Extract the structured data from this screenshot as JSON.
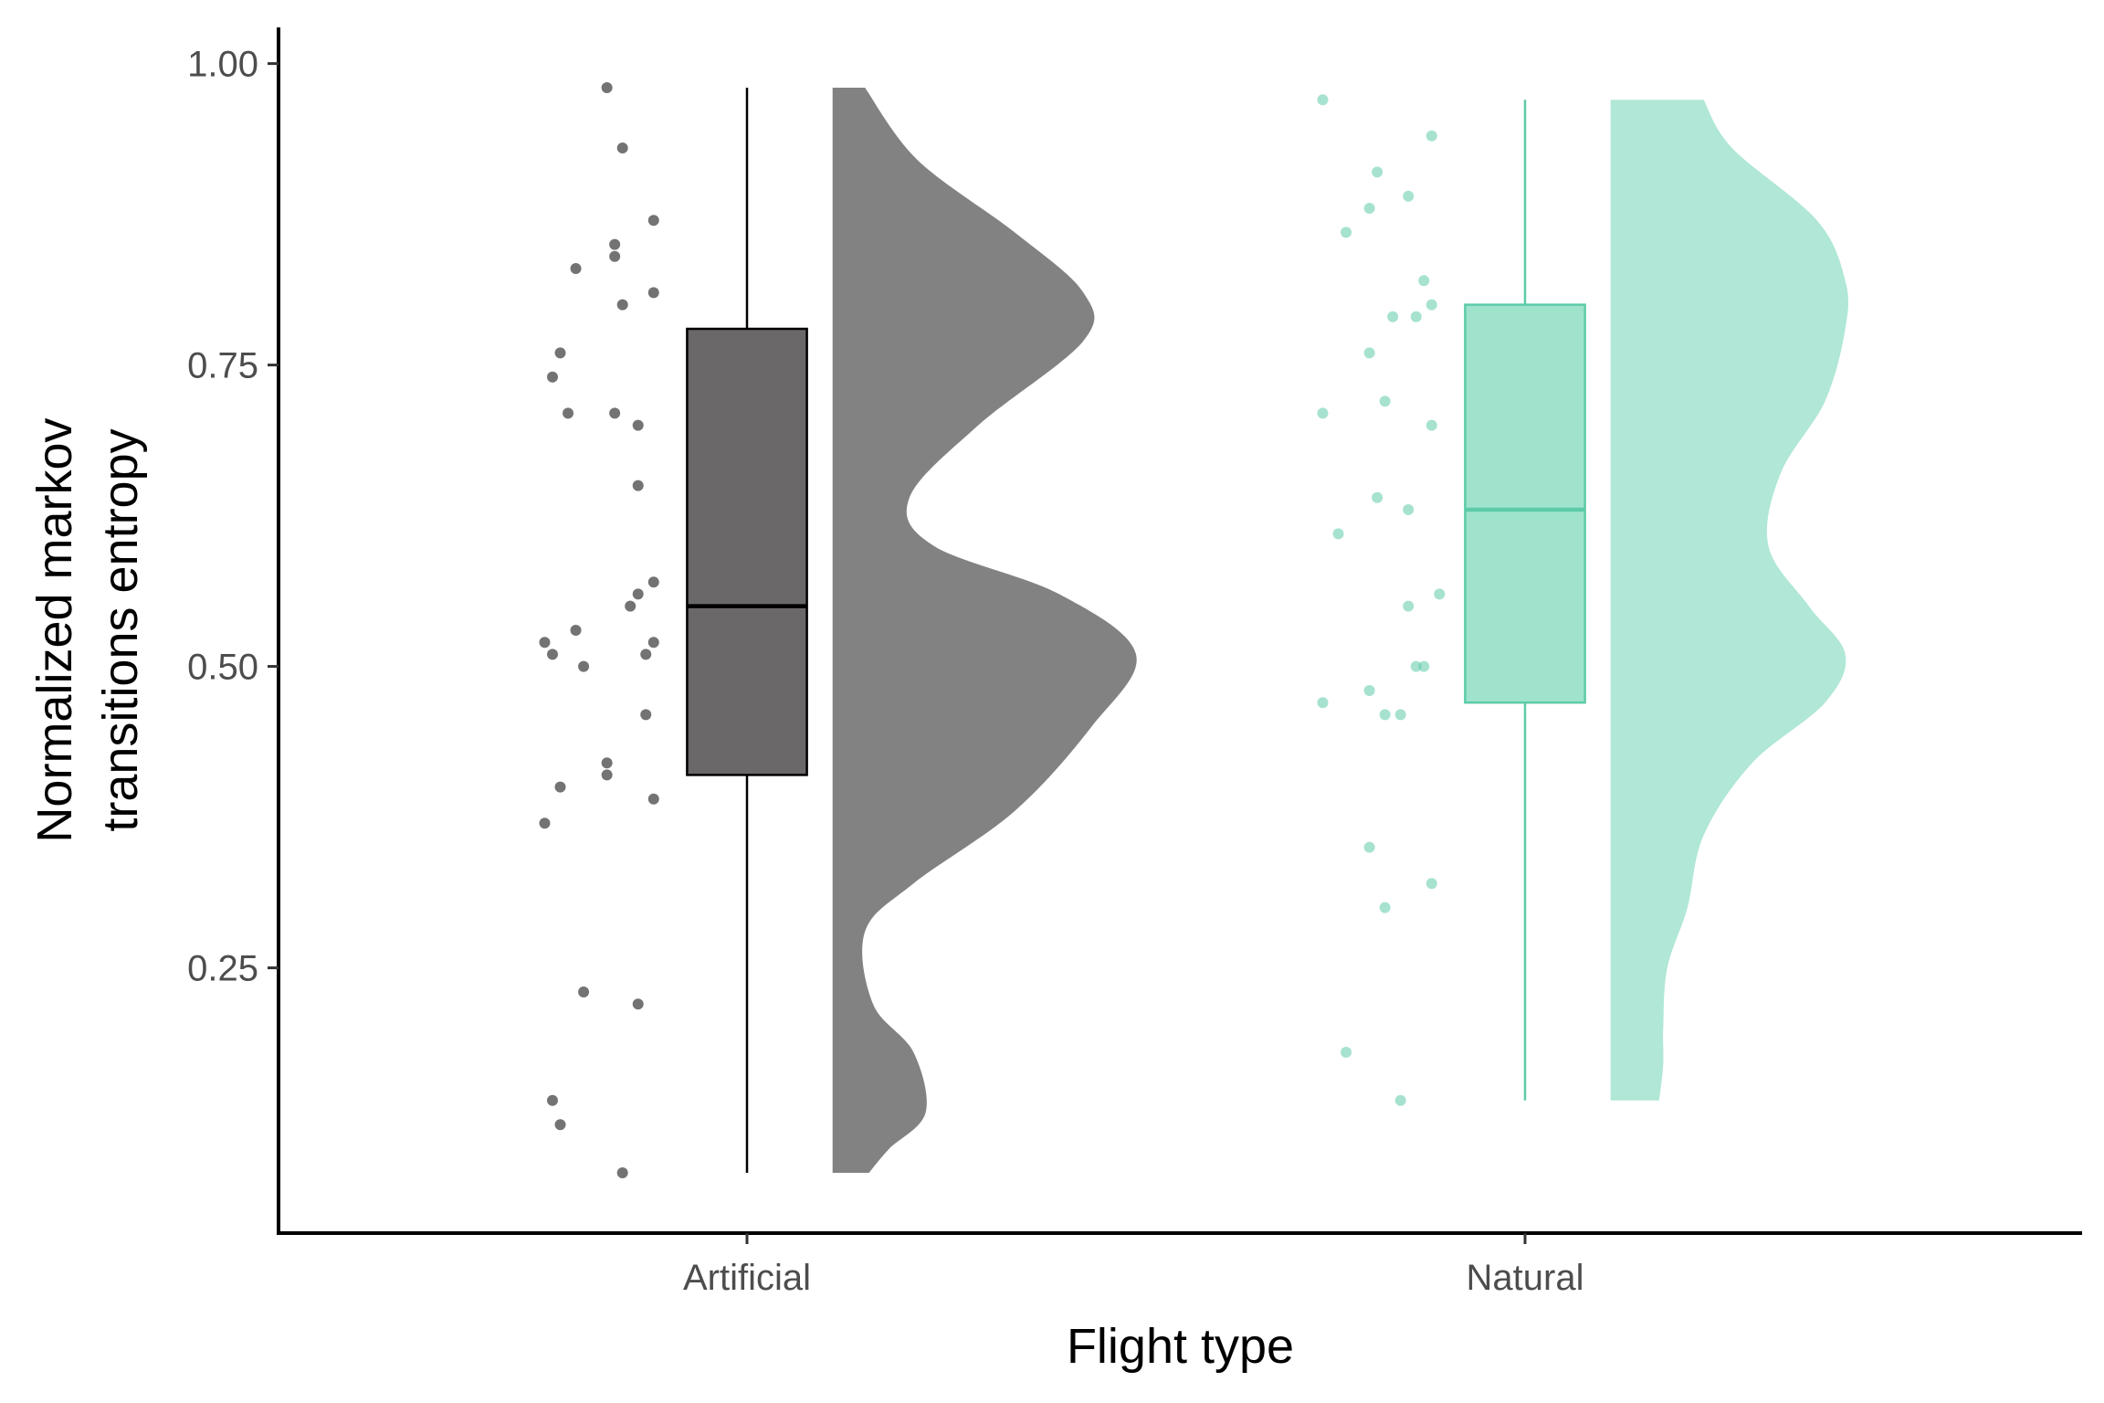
{
  "chart_data": {
    "type": "raincloud",
    "title": "",
    "xlabel": "Flight type",
    "ylabel_lines": [
      "Normalized markov",
      "transitions entropy"
    ],
    "ylim": [
      0.03,
      1.03
    ],
    "yticks": [
      0.25,
      0.5,
      0.75,
      1.0
    ],
    "ytick_labels": [
      "0.25",
      "0.50",
      "0.75",
      "1.00"
    ],
    "categories": [
      "Artificial",
      "Natural"
    ],
    "grid": false,
    "legend": "none",
    "groups": [
      {
        "category": "Artificial",
        "box_fill": "#6b6869",
        "box_stroke": "#000000",
        "cloud_fill": "#828282",
        "point_color": "#000000",
        "box": {
          "min": 0.08,
          "q1": 0.41,
          "median": 0.55,
          "q3": 0.78,
          "max": 0.98
        },
        "density": [
          [
            0.08,
            0.09
          ],
          [
            0.1,
            0.14
          ],
          [
            0.13,
            0.23
          ],
          [
            0.18,
            0.2
          ],
          [
            0.22,
            0.1
          ],
          [
            0.28,
            0.08
          ],
          [
            0.32,
            0.2
          ],
          [
            0.38,
            0.45
          ],
          [
            0.45,
            0.64
          ],
          [
            0.51,
            0.75
          ],
          [
            0.56,
            0.56
          ],
          [
            0.6,
            0.25
          ],
          [
            0.64,
            0.19
          ],
          [
            0.7,
            0.36
          ],
          [
            0.77,
            0.62
          ],
          [
            0.81,
            0.62
          ],
          [
            0.86,
            0.45
          ],
          [
            0.92,
            0.21
          ],
          [
            0.98,
            0.08
          ]
        ],
        "points": [
          [
            -0.18,
            0.98
          ],
          [
            -0.16,
            0.93
          ],
          [
            -0.12,
            0.87
          ],
          [
            -0.17,
            0.85
          ],
          [
            -0.17,
            0.84
          ],
          [
            -0.22,
            0.83
          ],
          [
            -0.12,
            0.81
          ],
          [
            -0.16,
            0.8
          ],
          [
            -0.24,
            0.76
          ],
          [
            -0.25,
            0.74
          ],
          [
            -0.23,
            0.71
          ],
          [
            -0.17,
            0.71
          ],
          [
            -0.14,
            0.7
          ],
          [
            -0.14,
            0.65
          ],
          [
            -0.12,
            0.57
          ],
          [
            -0.14,
            0.56
          ],
          [
            -0.15,
            0.55
          ],
          [
            -0.22,
            0.53
          ],
          [
            -0.26,
            0.52
          ],
          [
            -0.12,
            0.52
          ],
          [
            -0.25,
            0.51
          ],
          [
            -0.13,
            0.51
          ],
          [
            -0.21,
            0.5
          ],
          [
            -0.13,
            0.46
          ],
          [
            -0.18,
            0.42
          ],
          [
            -0.18,
            0.41
          ],
          [
            -0.24,
            0.4
          ],
          [
            -0.12,
            0.39
          ],
          [
            -0.26,
            0.37
          ],
          [
            -0.21,
            0.23
          ],
          [
            -0.14,
            0.22
          ],
          [
            -0.25,
            0.14
          ],
          [
            -0.24,
            0.12
          ],
          [
            -0.16,
            0.08
          ]
        ]
      },
      {
        "category": "Natural",
        "box_fill": "#9fe3cd",
        "box_stroke": "#5ccba8",
        "cloud_fill": "#b0e7d6",
        "point_color": "#5ccba8",
        "box": {
          "min": 0.14,
          "q1": 0.47,
          "median": 0.63,
          "q3": 0.8,
          "max": 0.97
        },
        "density": [
          [
            0.14,
            0.12
          ],
          [
            0.17,
            0.13
          ],
          [
            0.2,
            0.13
          ],
          [
            0.25,
            0.14
          ],
          [
            0.3,
            0.19
          ],
          [
            0.36,
            0.23
          ],
          [
            0.42,
            0.35
          ],
          [
            0.47,
            0.53
          ],
          [
            0.51,
            0.58
          ],
          [
            0.55,
            0.49
          ],
          [
            0.6,
            0.39
          ],
          [
            0.66,
            0.42
          ],
          [
            0.72,
            0.53
          ],
          [
            0.78,
            0.58
          ],
          [
            0.82,
            0.58
          ],
          [
            0.87,
            0.51
          ],
          [
            0.93,
            0.3
          ],
          [
            0.97,
            0.23
          ]
        ],
        "points": [
          [
            -0.26,
            0.97
          ],
          [
            -0.12,
            0.94
          ],
          [
            -0.19,
            0.91
          ],
          [
            -0.15,
            0.89
          ],
          [
            -0.2,
            0.88
          ],
          [
            -0.23,
            0.86
          ],
          [
            -0.13,
            0.82
          ],
          [
            -0.12,
            0.8
          ],
          [
            -0.17,
            0.79
          ],
          [
            -0.14,
            0.79
          ],
          [
            -0.2,
            0.76
          ],
          [
            -0.18,
            0.72
          ],
          [
            -0.26,
            0.71
          ],
          [
            -0.12,
            0.7
          ],
          [
            -0.19,
            0.64
          ],
          [
            -0.15,
            0.63
          ],
          [
            -0.24,
            0.61
          ],
          [
            -0.11,
            0.56
          ],
          [
            -0.15,
            0.55
          ],
          [
            -0.13,
            0.5
          ],
          [
            -0.14,
            0.5
          ],
          [
            -0.2,
            0.48
          ],
          [
            -0.26,
            0.47
          ],
          [
            -0.18,
            0.46
          ],
          [
            -0.16,
            0.46
          ],
          [
            -0.2,
            0.35
          ],
          [
            -0.12,
            0.32
          ],
          [
            -0.18,
            0.3
          ],
          [
            -0.23,
            0.18
          ],
          [
            -0.16,
            0.14
          ]
        ]
      }
    ]
  }
}
